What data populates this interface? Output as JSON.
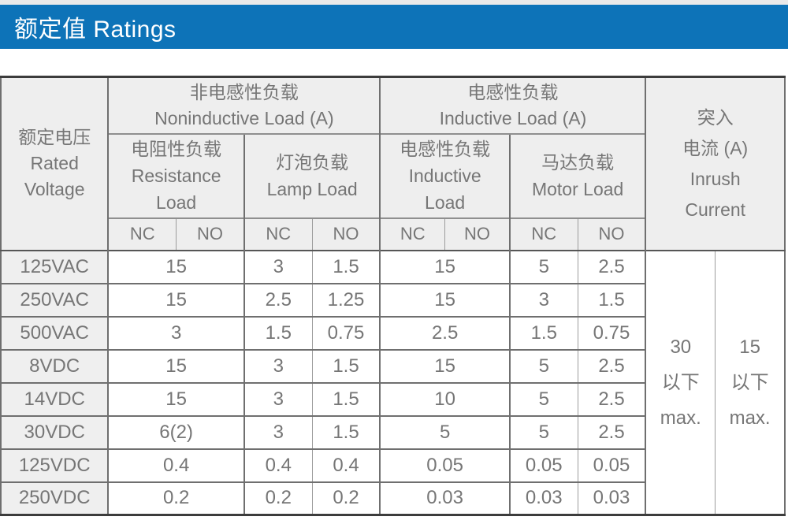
{
  "title": "额定值 Ratings",
  "colors": {
    "accent_blue": "#0d73b8",
    "header_bg": "#eeeeee",
    "row_label_bg": "#efefef",
    "text_gray": "#767676",
    "border_dark": "#3c3c3c"
  },
  "table": {
    "corner": {
      "line1": "额定电压",
      "line2": "Rated",
      "line3": "Voltage"
    },
    "group_noninductive": {
      "zh": "非电感性负载",
      "en": "Noninductive Load (A)"
    },
    "group_inductive": {
      "zh": "电感性负载",
      "en": "Inductive Load (A)"
    },
    "sub_resistance": {
      "line1": "电阻性负载",
      "line2": "Resistance",
      "line3": "Load"
    },
    "sub_lamp": {
      "line1": "灯泡负载",
      "line2": "Lamp Load"
    },
    "sub_inductive": {
      "line1": "电感性负载",
      "line2": "Inductive",
      "line3": "Load"
    },
    "sub_motor": {
      "line1": "马达负载",
      "line2": "Motor Load"
    },
    "inrush_header": {
      "line1": "突入",
      "line2": "电流 (A)",
      "line3": "Inrush",
      "line4": "Current"
    },
    "contact": {
      "nc": "NC",
      "no": "NO"
    },
    "rows": [
      {
        "voltage": "125VAC",
        "resistance": "15",
        "lamp_nc": "3",
        "lamp_no": "1.5",
        "inductive": "15",
        "motor_nc": "5",
        "motor_no": "2.5"
      },
      {
        "voltage": "250VAC",
        "resistance": "15",
        "lamp_nc": "2.5",
        "lamp_no": "1.25",
        "inductive": "15",
        "motor_nc": "3",
        "motor_no": "1.5"
      },
      {
        "voltage": "500VAC",
        "resistance": "3",
        "lamp_nc": "1.5",
        "lamp_no": "0.75",
        "inductive": "2.5",
        "motor_nc": "1.5",
        "motor_no": "0.75"
      },
      {
        "voltage": "8VDC",
        "resistance": "15",
        "lamp_nc": "3",
        "lamp_no": "1.5",
        "inductive": "15",
        "motor_nc": "5",
        "motor_no": "2.5"
      },
      {
        "voltage": "14VDC",
        "resistance": "15",
        "lamp_nc": "3",
        "lamp_no": "1.5",
        "inductive": "10",
        "motor_nc": "5",
        "motor_no": "2.5"
      },
      {
        "voltage": "30VDC",
        "resistance": "6(2)",
        "lamp_nc": "3",
        "lamp_no": "1.5",
        "inductive": "5",
        "motor_nc": "5",
        "motor_no": "2.5"
      },
      {
        "voltage": "125VDC",
        "resistance": "0.4",
        "lamp_nc": "0.4",
        "lamp_no": "0.4",
        "inductive": "0.05",
        "motor_nc": "0.05",
        "motor_no": "0.05"
      },
      {
        "voltage": "250VDC",
        "resistance": "0.2",
        "lamp_nc": "0.2",
        "lamp_no": "0.2",
        "inductive": "0.03",
        "motor_nc": "0.03",
        "motor_no": "0.03"
      }
    ],
    "inrush_30": {
      "line1": "30",
      "line2": "以下",
      "line3": "max."
    },
    "inrush_15": {
      "line1": "15",
      "line2": "以下",
      "line3": "max."
    }
  }
}
